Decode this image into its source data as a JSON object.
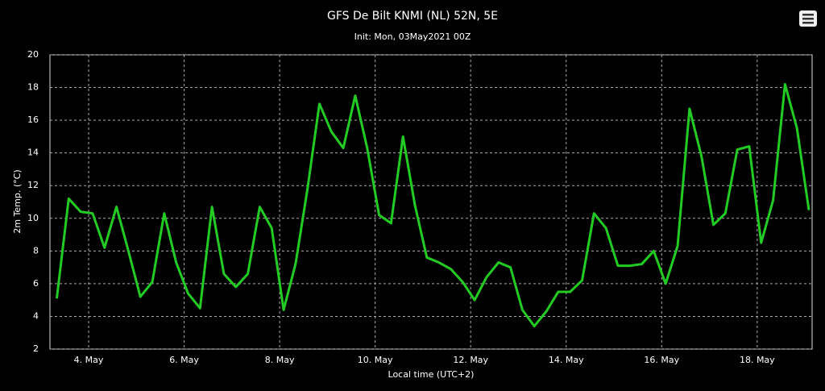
{
  "chart_data": {
    "type": "line",
    "title": "GFS De Bilt KNMI (NL) 52N, 5E",
    "subtitle": "Init: Mon, 03May2021 00Z",
    "x_label": "Local time (UTC+2)",
    "y_label": "2m Temp. (°C)",
    "x": [
      3.333,
      3.583,
      3.833,
      4.083,
      4.333,
      4.583,
      4.833,
      5.083,
      5.333,
      5.583,
      5.833,
      6.083,
      6.333,
      6.583,
      6.833,
      7.083,
      7.333,
      7.583,
      7.833,
      8.083,
      8.333,
      8.583,
      8.833,
      9.083,
      9.333,
      9.583,
      9.833,
      10.083,
      10.333,
      10.583,
      10.833,
      11.083,
      11.333,
      11.583,
      11.833,
      12.083,
      12.333,
      12.583,
      12.833,
      13.083,
      13.333,
      13.583,
      13.833,
      14.083,
      14.333,
      14.583,
      14.833,
      15.083,
      15.333,
      15.583,
      15.833,
      16.083,
      16.333,
      16.583,
      16.833,
      17.083,
      17.333,
      17.583,
      17.833,
      18.083,
      18.333,
      18.583,
      18.833,
      19.083
    ],
    "series": [
      {
        "name": "2m Temp.",
        "color": "#22cc22",
        "values": [
          5.1,
          11.2,
          10.4,
          10.3,
          8.2,
          10.7,
          8.0,
          5.2,
          6.1,
          10.3,
          7.3,
          5.4,
          4.5,
          10.7,
          6.6,
          5.8,
          6.6,
          10.7,
          9.4,
          4.4,
          7.2,
          11.8,
          17.0,
          15.3,
          14.3,
          17.5,
          14.3,
          10.2,
          9.7,
          15.0,
          10.8,
          7.6,
          7.3,
          6.9,
          6.1,
          5.0,
          6.4,
          7.3,
          7.0,
          4.4,
          3.4,
          4.3,
          5.5,
          5.5,
          6.2,
          10.3,
          9.4,
          7.1,
          7.1,
          7.2,
          8.0,
          6.0,
          8.3,
          16.7,
          13.8,
          9.6,
          10.3,
          14.2,
          14.4,
          8.5,
          11.1,
          18.2,
          15.5,
          10.5
        ]
      }
    ],
    "xlim": [
      3.19,
      19.15
    ],
    "xticks": [
      {
        "value": 4,
        "label": "4. May"
      },
      {
        "value": 6,
        "label": "6. May"
      },
      {
        "value": 8,
        "label": "8. May"
      },
      {
        "value": 10,
        "label": "10. May"
      },
      {
        "value": 12,
        "label": "12. May"
      },
      {
        "value": 14,
        "label": "14. May"
      },
      {
        "value": 16,
        "label": "16. May"
      },
      {
        "value": 18,
        "label": "18. May"
      }
    ],
    "ylim": [
      2,
      20
    ],
    "yticks": [
      2,
      4,
      6,
      8,
      10,
      12,
      14,
      16,
      18,
      20
    ],
    "grid": true
  }
}
